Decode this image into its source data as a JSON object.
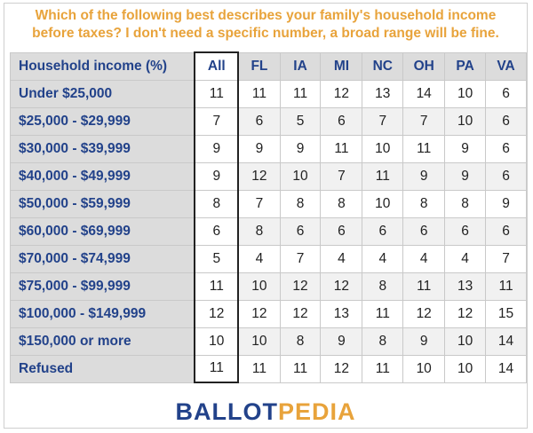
{
  "question_lines": [
    "Which of the following best describes your family's household income",
    "before taxes? I don't need a specific number, a broad range will be fine."
  ],
  "logo": {
    "part1": "BALLOT",
    "part2": "PEDIA"
  },
  "colors": {
    "accent_orange": "#e8a33b",
    "header_blue": "#22428a",
    "header_gray": "#dcdcdc"
  },
  "chart_data": {
    "type": "table",
    "title": "Which of the following best describes your family's household income before taxes? I don't need a specific number, a broad range will be fine.",
    "row_header_label": "Household income (%)",
    "columns": [
      "All",
      "FL",
      "IA",
      "MI",
      "NC",
      "OH",
      "PA",
      "VA"
    ],
    "rows": [
      {
        "label": "Under $25,000",
        "values": [
          11,
          11,
          11,
          12,
          13,
          14,
          10,
          6
        ]
      },
      {
        "label": "$25,000 - $29,999",
        "values": [
          7,
          6,
          5,
          6,
          7,
          7,
          10,
          6
        ]
      },
      {
        "label": "$30,000 - $39,999",
        "values": [
          9,
          9,
          9,
          11,
          10,
          11,
          9,
          6
        ]
      },
      {
        "label": "$40,000 - $49,999",
        "values": [
          9,
          12,
          10,
          7,
          11,
          9,
          9,
          6
        ]
      },
      {
        "label": "$50,000 - $59,999",
        "values": [
          8,
          7,
          8,
          8,
          10,
          8,
          8,
          9
        ]
      },
      {
        "label": "$60,000 - $69,999",
        "values": [
          6,
          8,
          6,
          6,
          6,
          6,
          6,
          6
        ]
      },
      {
        "label": "$70,000 - $74,999",
        "values": [
          5,
          4,
          7,
          4,
          4,
          4,
          4,
          7
        ]
      },
      {
        "label": "$75,000 - $99,999",
        "values": [
          11,
          10,
          12,
          12,
          8,
          11,
          13,
          11
        ]
      },
      {
        "label": "$100,000 - $149,999",
        "values": [
          12,
          12,
          12,
          13,
          11,
          12,
          12,
          15
        ]
      },
      {
        "label": "$150,000 or more",
        "values": [
          10,
          10,
          8,
          9,
          8,
          9,
          10,
          14
        ]
      },
      {
        "label": "Refused",
        "values": [
          11,
          11,
          11,
          12,
          11,
          10,
          10,
          14
        ]
      }
    ]
  }
}
